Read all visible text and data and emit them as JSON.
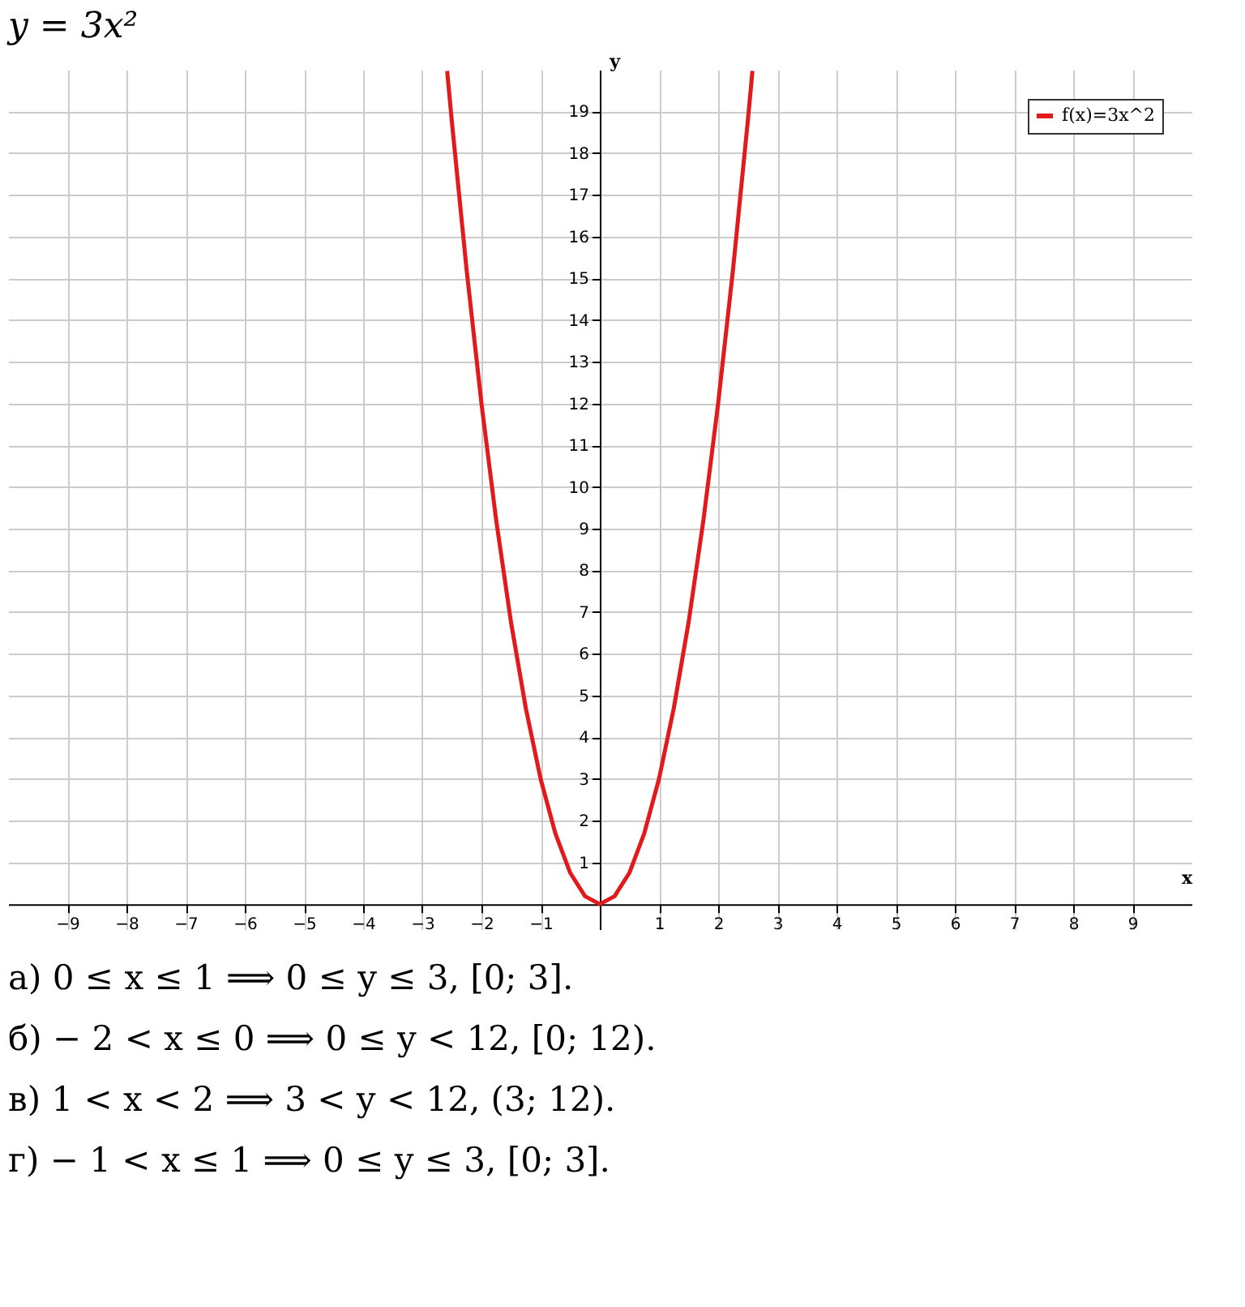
{
  "chart_data": {
    "type": "line",
    "title": "y = 3x²",
    "xlabel": "x",
    "ylabel": "y",
    "x": [
      -2.58,
      -2.5,
      -2.25,
      -2,
      -1.75,
      -1.5,
      -1.25,
      -1,
      -0.75,
      -0.5,
      -0.25,
      0,
      0.25,
      0.5,
      0.75,
      1,
      1.25,
      1.5,
      1.75,
      2,
      2.25,
      2.5,
      2.58
    ],
    "series": [
      {
        "name": "f(x)=3x^2",
        "color": "#e31a1c",
        "values": [
          19.97,
          18.75,
          15.19,
          12,
          9.19,
          6.75,
          4.69,
          3,
          1.69,
          0.75,
          0.19,
          0,
          0.19,
          0.75,
          1.69,
          3,
          4.69,
          6.75,
          9.19,
          12,
          15.19,
          18.75,
          19.97
        ]
      }
    ],
    "xlim": [
      -10,
      10
    ],
    "ylim": [
      -0.6,
      20
    ],
    "xticks": [
      -9,
      -8,
      -7,
      -6,
      -5,
      -4,
      -3,
      -2,
      -1,
      1,
      2,
      3,
      4,
      5,
      6,
      7,
      8,
      9
    ],
    "yticks": [
      1,
      2,
      3,
      4,
      5,
      6,
      7,
      8,
      9,
      10,
      11,
      12,
      13,
      14,
      15,
      16,
      17,
      18,
      19
    ],
    "grid": true,
    "legend": "top right",
    "marker": "none",
    "line_style": "solid",
    "annotations": [
      "а) 0 ≤ x ≤ 1   ⟹   0 ≤ y ≤ 3,   [0; 3].",
      "б) − 2 < x ≤ 0   ⟹   0 ≤ y < 12,   [0; 12).",
      "в) 1 < x < 2   ⟹   3 < y < 12,   (3; 12).",
      "г) − 1 < x ≤ 1   ⟹   0 ≤ y ≤ 3,   [0; 3]."
    ]
  }
}
